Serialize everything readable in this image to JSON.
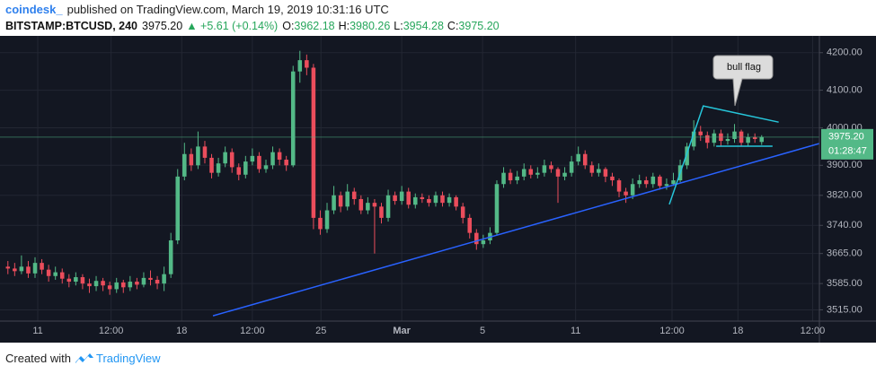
{
  "header": {
    "author": "coindesk_",
    "published": "published on TradingView.com, March 19, 2019 10:31:16 UTC",
    "symbol": "BITSTAMP:BTCUSD, 240",
    "last": "3975.20",
    "change": "▲ +5.61 (+0.14%)",
    "ohlc": [
      {
        "label": "O:",
        "value": "3962.18"
      },
      {
        "label": "H:",
        "value": "3980.26"
      },
      {
        "label": "L:",
        "value": "3954.28"
      },
      {
        "label": "C:",
        "value": "3975.20"
      }
    ]
  },
  "chart_data": {
    "type": "candlestick",
    "up_color": "#53b987",
    "down_color": "#eb4d5c",
    "background": "#131722",
    "grid": true,
    "xlim": [
      0,
      120
    ],
    "xticks": [
      {
        "value": 4.9,
        "label": "11"
      },
      {
        "value": 15.7,
        "label": "12:00"
      },
      {
        "value": 26.1,
        "label": "18"
      },
      {
        "value": 36.5,
        "label": "12:00"
      },
      {
        "value": 46.6,
        "label": "25"
      },
      {
        "value": 58.5,
        "label": "Mar"
      },
      {
        "value": 70.4,
        "label": "5"
      },
      {
        "value": 84.1,
        "label": "11"
      },
      {
        "value": 98.3,
        "label": "12:00"
      },
      {
        "value": 108,
        "label": "18"
      },
      {
        "value": 119,
        "label": "12:00"
      }
    ],
    "ylim": [
      3485,
      4240
    ],
    "yticks": [
      {
        "value": 4200,
        "label": "4200.00"
      },
      {
        "value": 4100,
        "label": "4100.00"
      },
      {
        "value": 4000,
        "label": "4000.00"
      },
      {
        "value": 3900,
        "label": "3900.00"
      },
      {
        "value": 3820,
        "label": "3820.00"
      },
      {
        "value": 3740,
        "label": "3740.00"
      },
      {
        "value": 3665,
        "label": "3665.00"
      },
      {
        "value": 3585,
        "label": "3585.00"
      },
      {
        "value": 3515,
        "label": "3515.00"
      }
    ],
    "ohlc": [
      [
        3630,
        3645,
        3610,
        3625
      ],
      [
        3625,
        3640,
        3605,
        3618
      ],
      [
        3618,
        3660,
        3610,
        3630
      ],
      [
        3630,
        3645,
        3600,
        3612
      ],
      [
        3612,
        3655,
        3600,
        3640
      ],
      [
        3640,
        3650,
        3610,
        3622
      ],
      [
        3622,
        3635,
        3590,
        3605
      ],
      [
        3605,
        3630,
        3595,
        3615
      ],
      [
        3615,
        3625,
        3585,
        3598
      ],
      [
        3598,
        3610,
        3575,
        3590
      ],
      [
        3590,
        3615,
        3580,
        3602
      ],
      [
        3602,
        3610,
        3570,
        3585
      ],
      [
        3585,
        3598,
        3560,
        3578
      ],
      [
        3578,
        3605,
        3565,
        3592
      ],
      [
        3592,
        3600,
        3565,
        3580
      ],
      [
        3580,
        3590,
        3555,
        3570
      ],
      [
        3570,
        3600,
        3560,
        3588
      ],
      [
        3588,
        3595,
        3560,
        3575
      ],
      [
        3575,
        3605,
        3565,
        3590
      ],
      [
        3590,
        3600,
        3570,
        3582
      ],
      [
        3582,
        3615,
        3575,
        3600
      ],
      [
        3600,
        3620,
        3580,
        3595
      ],
      [
        3595,
        3605,
        3570,
        3585
      ],
      [
        3585,
        3630,
        3565,
        3610
      ],
      [
        3610,
        3720,
        3600,
        3700
      ],
      [
        3700,
        3890,
        3690,
        3870
      ],
      [
        3870,
        3960,
        3860,
        3930
      ],
      [
        3930,
        3945,
        3885,
        3900
      ],
      [
        3900,
        3990,
        3890,
        3950
      ],
      [
        3950,
        3965,
        3905,
        3920
      ],
      [
        3920,
        3930,
        3865,
        3880
      ],
      [
        3880,
        3920,
        3870,
        3905
      ],
      [
        3905,
        3950,
        3895,
        3935
      ],
      [
        3935,
        3945,
        3880,
        3895
      ],
      [
        3895,
        3905,
        3860,
        3875
      ],
      [
        3875,
        3925,
        3865,
        3910
      ],
      [
        3910,
        3945,
        3900,
        3925
      ],
      [
        3925,
        3935,
        3880,
        3890
      ],
      [
        3890,
        3915,
        3880,
        3900
      ],
      [
        3900,
        3950,
        3890,
        3935
      ],
      [
        3935,
        3945,
        3900,
        3915
      ],
      [
        3915,
        3925,
        3885,
        3900
      ],
      [
        3900,
        4165,
        3895,
        4150
      ],
      [
        4150,
        4205,
        4120,
        4180
      ],
      [
        4180,
        4195,
        4140,
        4160
      ],
      [
        4160,
        4170,
        3730,
        3760
      ],
      [
        3760,
        3780,
        3715,
        3730
      ],
      [
        3730,
        3800,
        3720,
        3780
      ],
      [
        3780,
        3845,
        3770,
        3820
      ],
      [
        3820,
        3830,
        3775,
        3790
      ],
      [
        3790,
        3850,
        3780,
        3830
      ],
      [
        3830,
        3840,
        3795,
        3810
      ],
      [
        3810,
        3820,
        3770,
        3780
      ],
      [
        3780,
        3815,
        3770,
        3800
      ],
      [
        3800,
        3810,
        3665,
        3790
      ],
      [
        3790,
        3800,
        3745,
        3760
      ],
      [
        3760,
        3835,
        3750,
        3820
      ],
      [
        3820,
        3830,
        3795,
        3805
      ],
      [
        3805,
        3845,
        3795,
        3830
      ],
      [
        3830,
        3840,
        3785,
        3795
      ],
      [
        3795,
        3825,
        3785,
        3815
      ],
      [
        3815,
        3825,
        3800,
        3810
      ],
      [
        3810,
        3820,
        3790,
        3800
      ],
      [
        3800,
        3830,
        3790,
        3820
      ],
      [
        3820,
        3830,
        3790,
        3800
      ],
      [
        3800,
        3825,
        3790,
        3815
      ],
      [
        3815,
        3820,
        3780,
        3790
      ],
      [
        3790,
        3800,
        3745,
        3760
      ],
      [
        3760,
        3770,
        3705,
        3720
      ],
      [
        3720,
        3730,
        3675,
        3690
      ],
      [
        3690,
        3715,
        3680,
        3700
      ],
      [
        3700,
        3735,
        3690,
        3720
      ],
      [
        3720,
        3860,
        3715,
        3850
      ],
      [
        3850,
        3895,
        3840,
        3880
      ],
      [
        3880,
        3890,
        3850,
        3860
      ],
      [
        3860,
        3885,
        3850,
        3870
      ],
      [
        3870,
        3905,
        3860,
        3890
      ],
      [
        3890,
        3900,
        3865,
        3875
      ],
      [
        3875,
        3895,
        3865,
        3880
      ],
      [
        3880,
        3915,
        3870,
        3900
      ],
      [
        3900,
        3910,
        3880,
        3890
      ],
      [
        3890,
        3895,
        3800,
        3870
      ],
      [
        3870,
        3895,
        3860,
        3880
      ],
      [
        3880,
        3925,
        3870,
        3910
      ],
      [
        3910,
        3950,
        3900,
        3930
      ],
      [
        3930,
        3940,
        3890,
        3900
      ],
      [
        3900,
        3910,
        3870,
        3880
      ],
      [
        3880,
        3905,
        3870,
        3890
      ],
      [
        3890,
        3895,
        3855,
        3870
      ],
      [
        3870,
        3880,
        3845,
        3860
      ],
      [
        3860,
        3865,
        3815,
        3830
      ],
      [
        3830,
        3840,
        3800,
        3820
      ],
      [
        3820,
        3865,
        3810,
        3850
      ],
      [
        3850,
        3875,
        3840,
        3860
      ],
      [
        3860,
        3870,
        3840,
        3850
      ],
      [
        3850,
        3880,
        3840,
        3870
      ],
      [
        3870,
        3875,
        3835,
        3845
      ],
      [
        3845,
        3865,
        3835,
        3850
      ],
      [
        3850,
        3880,
        3845,
        3860
      ],
      [
        3860,
        3915,
        3855,
        3900
      ],
      [
        3900,
        3960,
        3890,
        3950
      ],
      [
        3950,
        4020,
        3940,
        3990
      ],
      [
        3990,
        4005,
        3965,
        3980
      ],
      [
        3980,
        3990,
        3945,
        3960
      ],
      [
        3960,
        3995,
        3950,
        3985
      ],
      [
        3985,
        3995,
        3950,
        3965
      ],
      [
        3965,
        3985,
        3955,
        3970
      ],
      [
        3970,
        4010,
        3960,
        3990
      ],
      [
        3990,
        3995,
        3950,
        3960
      ],
      [
        3960,
        3985,
        3950,
        3975
      ],
      [
        3975,
        3985,
        3960,
        3970
      ],
      [
        3962.18,
        3980.26,
        3954.28,
        3975.2
      ]
    ],
    "last_price": {
      "value": 3975.2,
      "label": "3975.20"
    },
    "countdown": "01:28:47",
    "drawings": [
      {
        "color": "#2962ff",
        "points": [
          [
            30.7,
            3499
          ],
          [
            120,
            3958
          ]
        ]
      },
      {
        "color": "#26c6da",
        "points": [
          [
            97.9,
            3796
          ],
          [
            102.9,
            4058
          ],
          [
            114,
            4015
          ]
        ]
      },
      {
        "color": "#26c6da",
        "points": [
          [
            104.8,
            3951
          ],
          [
            113.1,
            3951
          ]
        ]
      }
    ],
    "annotations": [
      {
        "text": "bull flag"
      }
    ]
  },
  "footer": {
    "created": "Created with",
    "brand": "TradingView"
  }
}
